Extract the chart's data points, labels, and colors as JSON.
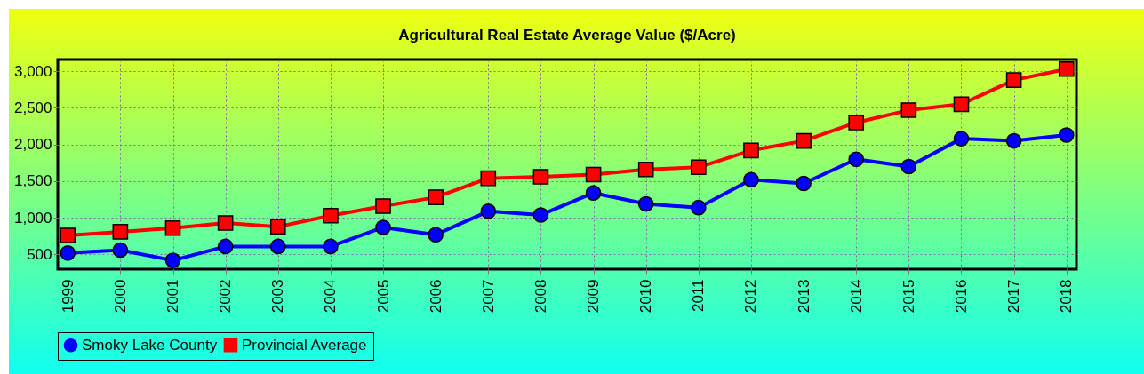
{
  "chart_data": {
    "type": "line",
    "title": "Agricultural Real Estate Average Value ($/Acre)",
    "categories": [
      "1999",
      "2000",
      "2001",
      "2002",
      "2003",
      "2004",
      "2005",
      "2006",
      "2007",
      "2008",
      "2009",
      "2010",
      "2011",
      "2012",
      "2013",
      "2014",
      "2015",
      "2016",
      "2017",
      "2018"
    ],
    "series": [
      {
        "name": "Smoky Lake County",
        "color": "#0000ff",
        "marker": "circle",
        "values": [
          520,
          560,
          420,
          610,
          610,
          610,
          870,
          770,
          1090,
          1040,
          1340,
          1190,
          1140,
          1520,
          1470,
          1800,
          1700,
          2080,
          2050,
          2130
        ]
      },
      {
        "name": "Provincial Average",
        "color": "#ff0000",
        "marker": "square",
        "values": [
          760,
          810,
          860,
          930,
          880,
          1030,
          1160,
          1280,
          1540,
          1560,
          1590,
          1660,
          1690,
          1920,
          2050,
          2300,
          2470,
          2550,
          2880,
          3030
        ]
      }
    ],
    "ylim": [
      300,
      3160
    ],
    "yticks": [
      {
        "value": 500,
        "label": "500"
      },
      {
        "value": 1000,
        "label": "1,000"
      },
      {
        "value": 1500,
        "label": "1,500"
      },
      {
        "value": 2000,
        "label": "2,000"
      },
      {
        "value": 2500,
        "label": "2,500"
      },
      {
        "value": 3000,
        "label": "3,000"
      }
    ],
    "grid": true,
    "legend": "bottom",
    "line_style": "solid"
  }
}
